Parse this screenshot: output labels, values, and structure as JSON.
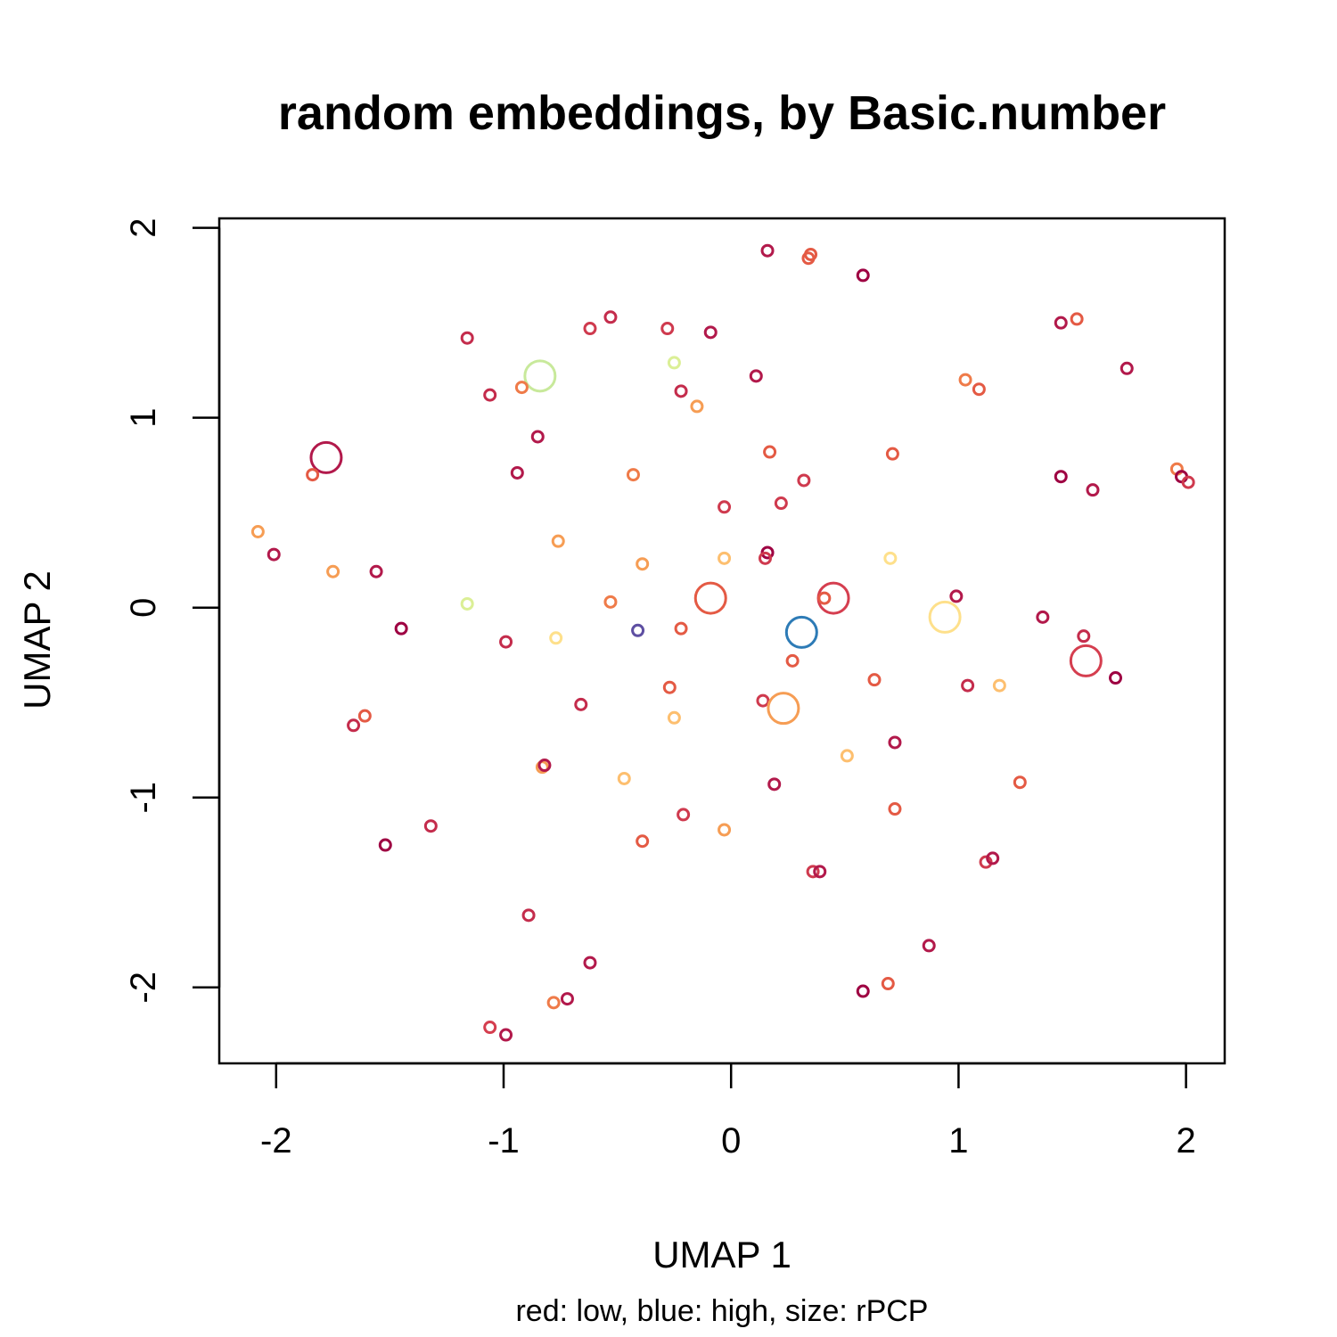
{
  "chart_data": {
    "type": "scatter",
    "title": "random embeddings, by Basic.number",
    "xlabel": "UMAP 1",
    "ylabel": "UMAP 2",
    "subtitle": "red: low, blue: high, size: rPCP",
    "xlim": [
      -2.25,
      2.17
    ],
    "ylim": [
      -2.4,
      2.05
    ],
    "xticks": [
      -2,
      -1,
      0,
      1,
      2
    ],
    "yticks": [
      -2,
      -1,
      0,
      1,
      2
    ],
    "grid": false,
    "legend": "none",
    "encoding": {
      "color": "Basic.number (red: low, blue: high)",
      "size": "rPCP"
    },
    "points": [
      {
        "x": 0.16,
        "y": 1.88,
        "color": "#b2194b",
        "r": 6
      },
      {
        "x": 0.35,
        "y": 1.86,
        "color": "#e45a44",
        "r": 6
      },
      {
        "x": 0.34,
        "y": 1.84,
        "color": "#e45a44",
        "r": 6
      },
      {
        "x": 0.58,
        "y": 1.75,
        "color": "#9e0142",
        "r": 6
      },
      {
        "x": -0.62,
        "y": 1.47,
        "color": "#cf3a4e",
        "r": 6
      },
      {
        "x": -0.53,
        "y": 1.53,
        "color": "#c42c4c",
        "r": 6
      },
      {
        "x": -0.28,
        "y": 1.47,
        "color": "#cf3a4e",
        "r": 6
      },
      {
        "x": -0.09,
        "y": 1.45,
        "color": "#b2194b",
        "r": 6
      },
      {
        "x": -1.16,
        "y": 1.42,
        "color": "#c42c4c",
        "r": 6
      },
      {
        "x": 1.45,
        "y": 1.5,
        "color": "#b2194b",
        "r": 6
      },
      {
        "x": 1.52,
        "y": 1.52,
        "color": "#e45a44",
        "r": 6
      },
      {
        "x": 1.74,
        "y": 1.26,
        "color": "#b2194b",
        "r": 6
      },
      {
        "x": -0.84,
        "y": 1.22,
        "color": "#c8e99b",
        "r": 17
      },
      {
        "x": -0.25,
        "y": 1.29,
        "color": "#dbef96",
        "r": 6
      },
      {
        "x": 0.11,
        "y": 1.22,
        "color": "#b2194b",
        "r": 6
      },
      {
        "x": -1.06,
        "y": 1.12,
        "color": "#c42c4c",
        "r": 6
      },
      {
        "x": -0.92,
        "y": 1.16,
        "color": "#ef7b49",
        "r": 6
      },
      {
        "x": -0.22,
        "y": 1.14,
        "color": "#c42c4c",
        "r": 6
      },
      {
        "x": -0.15,
        "y": 1.06,
        "color": "#f69d54",
        "r": 6
      },
      {
        "x": 1.03,
        "y": 1.2,
        "color": "#ef7b49",
        "r": 6
      },
      {
        "x": 1.09,
        "y": 1.15,
        "color": "#e45a44",
        "r": 6
      },
      {
        "x": -1.78,
        "y": 0.79,
        "color": "#b2194b",
        "r": 17
      },
      {
        "x": -1.84,
        "y": 0.7,
        "color": "#e45a44",
        "r": 6
      },
      {
        "x": -0.85,
        "y": 0.9,
        "color": "#b2194b",
        "r": 6
      },
      {
        "x": -0.94,
        "y": 0.71,
        "color": "#b2194b",
        "r": 6
      },
      {
        "x": -0.43,
        "y": 0.7,
        "color": "#ef7b49",
        "r": 6
      },
      {
        "x": 0.17,
        "y": 0.82,
        "color": "#e45a44",
        "r": 6
      },
      {
        "x": 0.32,
        "y": 0.67,
        "color": "#cf3a4e",
        "r": 6
      },
      {
        "x": 0.71,
        "y": 0.81,
        "color": "#e45a44",
        "r": 6
      },
      {
        "x": 1.45,
        "y": 0.69,
        "color": "#9e0142",
        "r": 6
      },
      {
        "x": 1.59,
        "y": 0.62,
        "color": "#b2194b",
        "r": 6
      },
      {
        "x": 1.96,
        "y": 0.73,
        "color": "#ef7b49",
        "r": 6
      },
      {
        "x": 1.98,
        "y": 0.69,
        "color": "#9e0142",
        "r": 6
      },
      {
        "x": 2.01,
        "y": 0.66,
        "color": "#cf3a4e",
        "r": 6
      },
      {
        "x": -2.08,
        "y": 0.4,
        "color": "#f69d54",
        "r": 6
      },
      {
        "x": -2.01,
        "y": 0.28,
        "color": "#b2194b",
        "r": 6
      },
      {
        "x": -1.75,
        "y": 0.19,
        "color": "#f69d54",
        "r": 6
      },
      {
        "x": -1.56,
        "y": 0.19,
        "color": "#b2194b",
        "r": 6
      },
      {
        "x": -0.76,
        "y": 0.35,
        "color": "#f69d54",
        "r": 6
      },
      {
        "x": -0.39,
        "y": 0.23,
        "color": "#f69d54",
        "r": 6
      },
      {
        "x": -0.03,
        "y": 0.53,
        "color": "#cf3a4e",
        "r": 6
      },
      {
        "x": -0.03,
        "y": 0.26,
        "color": "#fdbf6f",
        "r": 6
      },
      {
        "x": 0.22,
        "y": 0.55,
        "color": "#cf3a4e",
        "r": 6
      },
      {
        "x": 0.16,
        "y": 0.29,
        "color": "#9e0142",
        "r": 6
      },
      {
        "x": 0.15,
        "y": 0.26,
        "color": "#cf3a4e",
        "r": 6
      },
      {
        "x": 0.7,
        "y": 0.26,
        "color": "#fee08b",
        "r": 6
      },
      {
        "x": -1.45,
        "y": -0.11,
        "color": "#9e0142",
        "r": 6
      },
      {
        "x": -1.16,
        "y": 0.02,
        "color": "#dbef96",
        "r": 6
      },
      {
        "x": -0.99,
        "y": -0.18,
        "color": "#c42c4c",
        "r": 6
      },
      {
        "x": -0.77,
        "y": -0.16,
        "color": "#fee08b",
        "r": 6
      },
      {
        "x": -0.53,
        "y": 0.03,
        "color": "#ef7b49",
        "r": 6
      },
      {
        "x": -0.41,
        "y": -0.12,
        "color": "#5e4fa2",
        "r": 6
      },
      {
        "x": -0.22,
        "y": -0.11,
        "color": "#e45a44",
        "r": 6
      },
      {
        "x": -0.09,
        "y": 0.05,
        "color": "#e45a44",
        "r": 17
      },
      {
        "x": 0.45,
        "y": 0.05,
        "color": "#d53e4f",
        "r": 17
      },
      {
        "x": 0.41,
        "y": 0.05,
        "color": "#e45a44",
        "r": 6
      },
      {
        "x": 0.31,
        "y": -0.13,
        "color": "#2d7bb6",
        "r": 17
      },
      {
        "x": 0.94,
        "y": -0.05,
        "color": "#fee08b",
        "r": 17
      },
      {
        "x": 0.99,
        "y": 0.06,
        "color": "#b2194b",
        "r": 6
      },
      {
        "x": 1.37,
        "y": -0.05,
        "color": "#b2194b",
        "r": 6
      },
      {
        "x": 1.55,
        "y": -0.15,
        "color": "#c42c4c",
        "r": 6
      },
      {
        "x": 1.56,
        "y": -0.28,
        "color": "#d53e4f",
        "r": 17
      },
      {
        "x": 1.69,
        "y": -0.37,
        "color": "#9e0142",
        "r": 6
      },
      {
        "x": 0.27,
        "y": -0.28,
        "color": "#e45a44",
        "r": 6
      },
      {
        "x": 0.63,
        "y": -0.38,
        "color": "#e45a44",
        "r": 6
      },
      {
        "x": 1.04,
        "y": -0.41,
        "color": "#c42c4c",
        "r": 6
      },
      {
        "x": 1.18,
        "y": -0.41,
        "color": "#fdbf6f",
        "r": 6
      },
      {
        "x": -0.27,
        "y": -0.42,
        "color": "#e45a44",
        "r": 6
      },
      {
        "x": -0.66,
        "y": -0.51,
        "color": "#c42c4c",
        "r": 6
      },
      {
        "x": 0.14,
        "y": -0.49,
        "color": "#cf3a4e",
        "r": 6
      },
      {
        "x": 0.23,
        "y": -0.53,
        "color": "#f69d54",
        "r": 17
      },
      {
        "x": -0.25,
        "y": -0.58,
        "color": "#fdbf6f",
        "r": 6
      },
      {
        "x": -1.66,
        "y": -0.62,
        "color": "#c42c4c",
        "r": 6
      },
      {
        "x": -1.61,
        "y": -0.57,
        "color": "#e45a44",
        "r": 6
      },
      {
        "x": 0.72,
        "y": -0.71,
        "color": "#b2194b",
        "r": 6
      },
      {
        "x": 0.51,
        "y": -0.78,
        "color": "#fdbf6f",
        "r": 6
      },
      {
        "x": -0.83,
        "y": -0.84,
        "color": "#f69d54",
        "r": 6
      },
      {
        "x": -0.82,
        "y": -0.83,
        "color": "#b2194b",
        "r": 6
      },
      {
        "x": -0.47,
        "y": -0.9,
        "color": "#fdbf6f",
        "r": 6
      },
      {
        "x": 0.19,
        "y": -0.93,
        "color": "#b2194b",
        "r": 6
      },
      {
        "x": 1.27,
        "y": -0.92,
        "color": "#e45a44",
        "r": 6
      },
      {
        "x": 0.72,
        "y": -1.06,
        "color": "#e45a44",
        "r": 6
      },
      {
        "x": -1.32,
        "y": -1.15,
        "color": "#c42c4c",
        "r": 6
      },
      {
        "x": -1.52,
        "y": -1.25,
        "color": "#9e0142",
        "r": 6
      },
      {
        "x": -0.21,
        "y": -1.09,
        "color": "#cf3a4e",
        "r": 6
      },
      {
        "x": -0.39,
        "y": -1.23,
        "color": "#e45a44",
        "r": 6
      },
      {
        "x": -0.03,
        "y": -1.17,
        "color": "#f69d54",
        "r": 6
      },
      {
        "x": 0.36,
        "y": -1.39,
        "color": "#cf3a4e",
        "r": 6
      },
      {
        "x": 0.39,
        "y": -1.39,
        "color": "#b2194b",
        "r": 6
      },
      {
        "x": 1.12,
        "y": -1.34,
        "color": "#cf3a4e",
        "r": 6
      },
      {
        "x": 1.15,
        "y": -1.32,
        "color": "#b2194b",
        "r": 6
      },
      {
        "x": -0.89,
        "y": -1.62,
        "color": "#c42c4c",
        "r": 6
      },
      {
        "x": 0.87,
        "y": -1.78,
        "color": "#b2194b",
        "r": 6
      },
      {
        "x": -0.62,
        "y": -1.87,
        "color": "#b2194b",
        "r": 6
      },
      {
        "x": 0.58,
        "y": -2.02,
        "color": "#9e0142",
        "r": 6
      },
      {
        "x": 0.69,
        "y": -1.98,
        "color": "#e45a44",
        "r": 6
      },
      {
        "x": -0.78,
        "y": -2.08,
        "color": "#ef7b49",
        "r": 6
      },
      {
        "x": -0.72,
        "y": -2.06,
        "color": "#b2194b",
        "r": 6
      },
      {
        "x": -1.06,
        "y": -2.21,
        "color": "#d53e4f",
        "r": 6
      },
      {
        "x": -0.99,
        "y": -2.25,
        "color": "#b2194b",
        "r": 6
      }
    ]
  }
}
